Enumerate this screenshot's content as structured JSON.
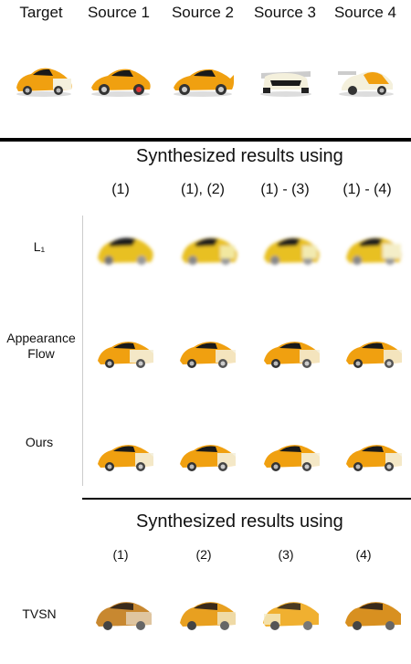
{
  "header": {
    "labels": [
      "Target",
      "Source 1",
      "Source 2",
      "Source 3",
      "Source 4"
    ]
  },
  "section1": {
    "title": "Synthesized results using",
    "columns": [
      "(1)",
      "(1), (2)",
      "(1) - (3)",
      "(1) - (4)"
    ],
    "rows": [
      {
        "label": "L₁"
      },
      {
        "label_line1": "Appearance",
        "label_line2": "Flow"
      },
      {
        "label": "Ours"
      }
    ]
  },
  "section2": {
    "title": "Synthesized results using",
    "columns": [
      "(1)",
      "(2)",
      "(3)",
      "(4)"
    ],
    "rows": [
      {
        "label": "TVSN"
      }
    ]
  },
  "colors": {
    "car_body": "#f0a010",
    "car_dark": "#1a1a1a",
    "car_light": "#f4f0dc",
    "blur_body": "#e8c020"
  }
}
